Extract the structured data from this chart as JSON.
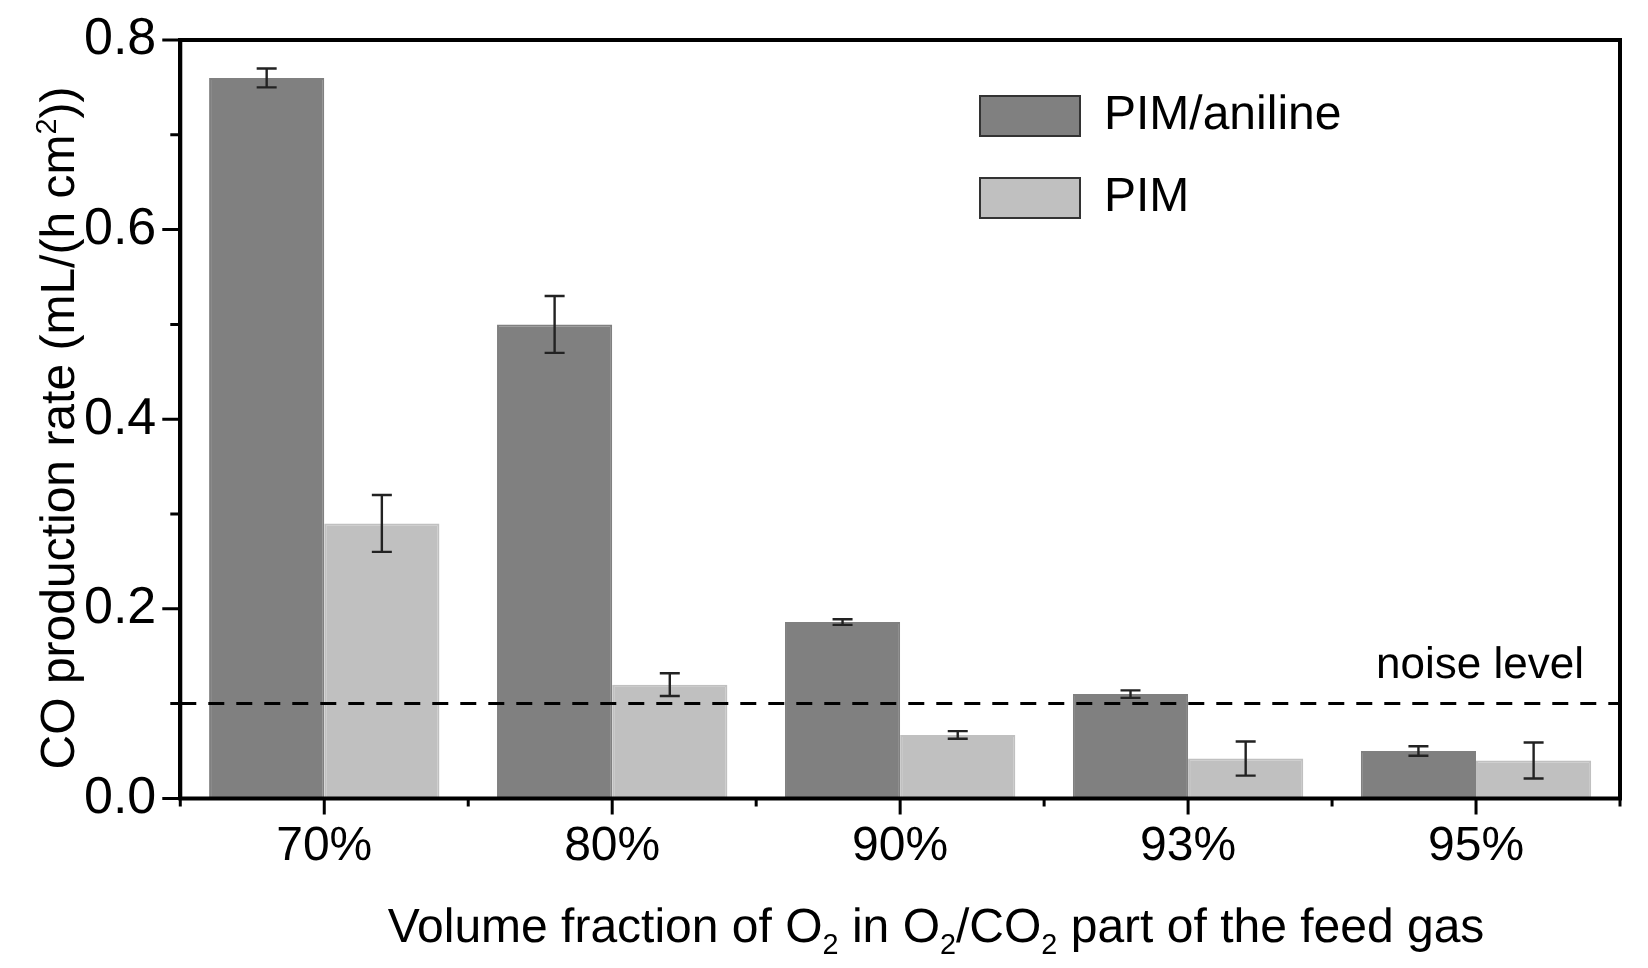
{
  "chart_data": {
    "type": "bar",
    "xlabel": "Volume fraction of O$_{2}$ in O$_{2}$/CO$_{2}$ part of the feed gas",
    "ylabel": "CO production rate (mL/(h cm$^{2}$))",
    "categories": [
      "70%",
      "80%",
      "90%",
      "93%",
      "95%"
    ],
    "series": [
      {
        "name": "PIM/aniline",
        "color": "#808080",
        "values": [
          0.76,
          0.5,
          0.186,
          0.11,
          0.05
        ],
        "errors": [
          0.01,
          0.03,
          0.003,
          0.004,
          0.005
        ]
      },
      {
        "name": "PIM",
        "color": "#c0c0c0",
        "values": [
          0.29,
          0.12,
          0.067,
          0.042,
          0.04
        ],
        "errors": [
          0.03,
          0.012,
          0.004,
          0.018,
          0.019
        ]
      }
    ],
    "ylim": [
      0,
      0.8
    ],
    "yticks": [
      {
        "value": 0,
        "label": "0.0"
      },
      {
        "value": 0.1,
        "label": null
      },
      {
        "value": 0.2,
        "label": "0.2"
      },
      {
        "value": 0.3,
        "label": null
      },
      {
        "value": 0.4,
        "label": "0.4"
      },
      {
        "value": 0.5,
        "label": null
      },
      {
        "value": 0.6,
        "label": "0.6"
      },
      {
        "value": 0.7,
        "label": null
      },
      {
        "value": 0.8,
        "label": "0.8"
      }
    ],
    "ref_lines": [
      {
        "axis": "y",
        "value": 0.1,
        "label": "noise level",
        "line_style": "dashed",
        "color": "#000000"
      }
    ],
    "legend": "top right",
    "grid": false
  }
}
